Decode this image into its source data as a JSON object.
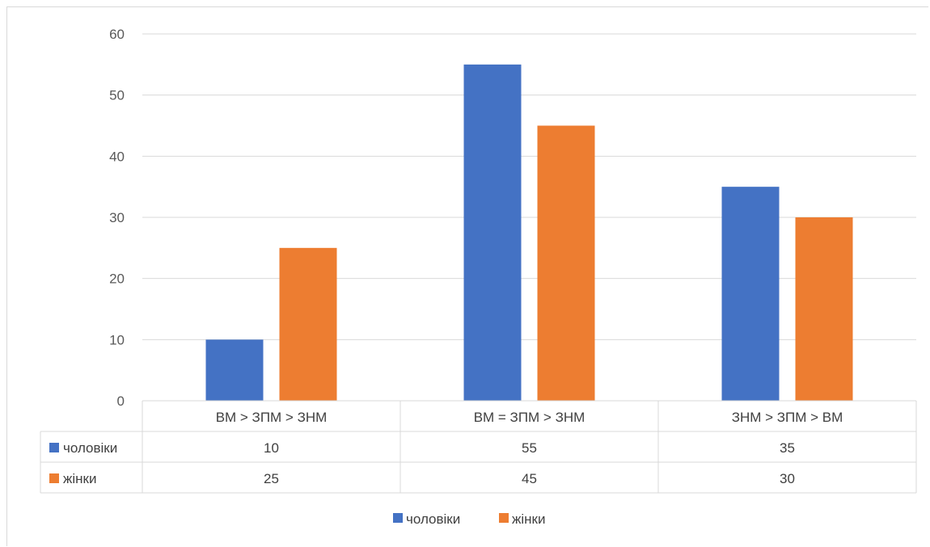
{
  "chart_data": {
    "type": "bar",
    "categories": [
      "ВМ > ЗПМ > ЗНМ",
      "ВМ = ЗПМ > ЗНМ",
      "ЗНМ > ЗПМ > ВМ"
    ],
    "series": [
      {
        "name": "чоловіки",
        "values": [
          10,
          55,
          35
        ],
        "color": "#4472C4"
      },
      {
        "name": "жінки",
        "values": [
          25,
          45,
          30
        ],
        "color": "#ED7D31"
      }
    ],
    "ylim": [
      0,
      60
    ],
    "yticks": [
      0,
      10,
      20,
      30,
      40,
      50,
      60
    ],
    "grid": true,
    "data_table": true,
    "legend_position": "bottom",
    "title": "",
    "xlabel": "",
    "ylabel": ""
  }
}
